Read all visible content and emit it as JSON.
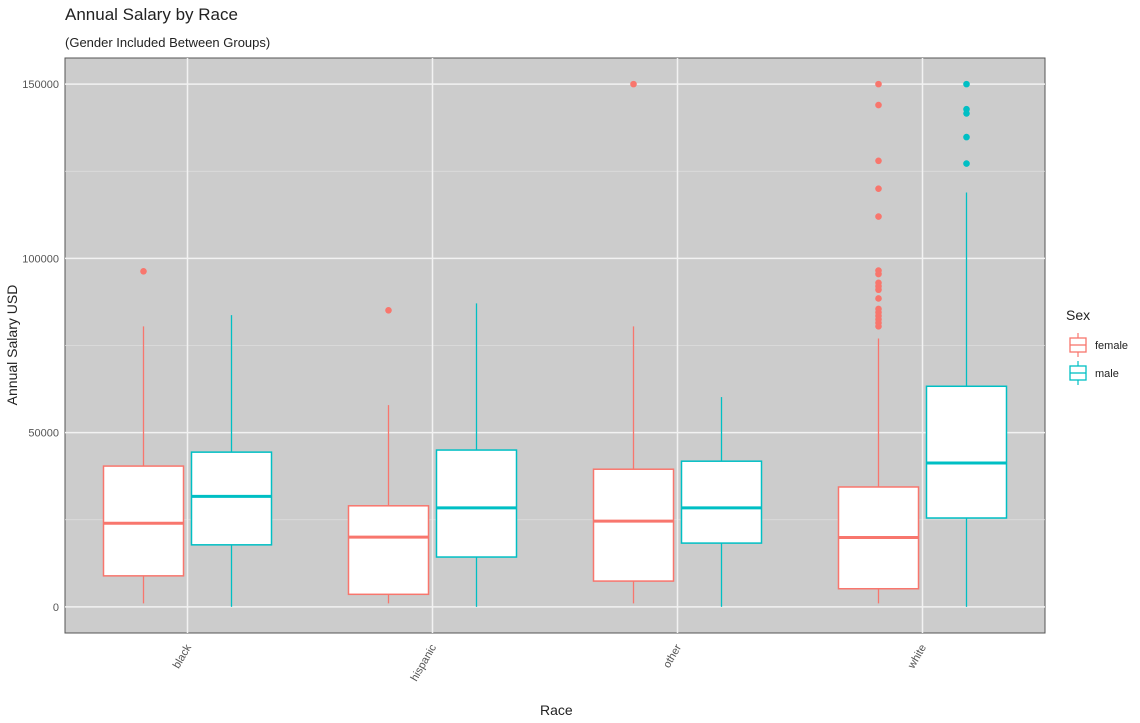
{
  "chart_data": {
    "type": "boxplot",
    "title": "Annual Salary by Race",
    "subtitle": "(Gender Included Between Groups)",
    "xlabel": "Race",
    "ylabel": "Annual Salary USD",
    "categories": [
      "black",
      "hispanic",
      "other",
      "white"
    ],
    "yticks": [
      "0",
      "50000",
      "100000",
      "150000"
    ],
    "ytick_values": [
      0,
      50000,
      100000,
      150000
    ],
    "ylim": [
      -7500,
      157500
    ],
    "grid": true,
    "legend": {
      "title": "Sex",
      "position": "right"
    },
    "series": [
      {
        "name": "female",
        "color": "#F8766D",
        "boxes": [
          {
            "min": 1000,
            "q1": 8900,
            "median": 24000,
            "q3": 40400,
            "max": 80500,
            "outliers": [
              96300
            ]
          },
          {
            "min": 1000,
            "q1": 3600,
            "median": 20000,
            "q3": 29000,
            "max": 57900,
            "outliers": [
              85100
            ]
          },
          {
            "min": 1000,
            "q1": 7400,
            "median": 24600,
            "q3": 39500,
            "max": 80500,
            "outliers": [
              150000
            ]
          },
          {
            "min": 1000,
            "q1": 5200,
            "median": 19900,
            "q3": 34400,
            "max": 77000,
            "outliers": [
              150000,
              144000,
              128000,
              120000,
              112000,
              96500,
              95500,
              93000,
              92000,
              91000,
              88500,
              85500,
              84500,
              83500,
              82500,
              81500,
              80500
            ]
          }
        ]
      },
      {
        "name": "male",
        "color": "#00BFC4",
        "boxes": [
          {
            "min": 0,
            "q1": 17800,
            "median": 31700,
            "q3": 44400,
            "max": 83700,
            "outliers": []
          },
          {
            "min": 0,
            "q1": 14300,
            "median": 28400,
            "q3": 45000,
            "max": 87100,
            "outliers": []
          },
          {
            "min": 0,
            "q1": 18300,
            "median": 28400,
            "q3": 41800,
            "max": 60200,
            "outliers": []
          },
          {
            "min": 0,
            "q1": 25500,
            "median": 41300,
            "q3": 63300,
            "max": 118900,
            "outliers": [
              150000,
              142800,
              141600,
              134800,
              127200
            ]
          }
        ]
      }
    ]
  }
}
